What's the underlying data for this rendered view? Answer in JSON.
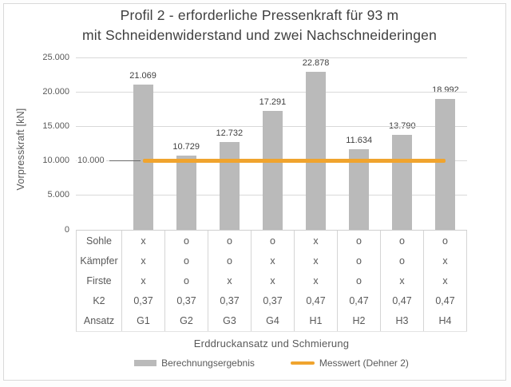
{
  "chart_data": {
    "type": "bar",
    "title_line1": "Profil 2 - erforderliche Pressenkraft für 93 m",
    "title_line2": "mit Schneidenwiderstand und zwei Nachschneideringen",
    "xlabel": "Erddruckansatz und Schmierung",
    "ylabel": "Vorpresskraft [kN]",
    "ylim": [
      0,
      25000
    ],
    "grid": "horizontal",
    "legend_position": "bottom",
    "yticks": [
      {
        "v": 0,
        "label": "0"
      },
      {
        "v": 5000,
        "label": "5.000"
      },
      {
        "v": 10000,
        "label": "10.000"
      },
      {
        "v": 15000,
        "label": "15.000"
      },
      {
        "v": 20000,
        "label": "20.000"
      },
      {
        "v": 25000,
        "label": "25.000"
      }
    ],
    "categories": [
      "G1",
      "G2",
      "G3",
      "G4",
      "H1",
      "H2",
      "H3",
      "H4"
    ],
    "series": [
      {
        "name": "Berechnungsergebnis",
        "type": "bar",
        "color": "#BABABA",
        "values": [
          21069,
          10729,
          12732,
          17291,
          22878,
          11634,
          13790,
          18992
        ],
        "labels": [
          "21.069",
          "10.729",
          "12.732",
          "17.291",
          "22.878",
          "11.634",
          "13.790",
          "18.992"
        ]
      },
      {
        "name": "Messwert (Dehner 2)",
        "type": "line",
        "color": "#F0A42E",
        "value": 10000
      }
    ],
    "annotation": {
      "text": "10.000"
    },
    "table": {
      "row_labels": [
        "Sohle",
        "Kämpfer",
        "Firste",
        "K2",
        "Ansatz"
      ],
      "rows": [
        [
          "x",
          "o",
          "o",
          "o",
          "x",
          "o",
          "o",
          "o"
        ],
        [
          "x",
          "o",
          "o",
          "x",
          "x",
          "o",
          "o",
          "x"
        ],
        [
          "x",
          "o",
          "x",
          "x",
          "x",
          "o",
          "x",
          "x"
        ],
        [
          "0,37",
          "0,37",
          "0,37",
          "0,37",
          "0,47",
          "0,47",
          "0,47",
          "0,47"
        ],
        [
          "G1",
          "G2",
          "G3",
          "G4",
          "H1",
          "H2",
          "H3",
          "H4"
        ]
      ]
    }
  }
}
